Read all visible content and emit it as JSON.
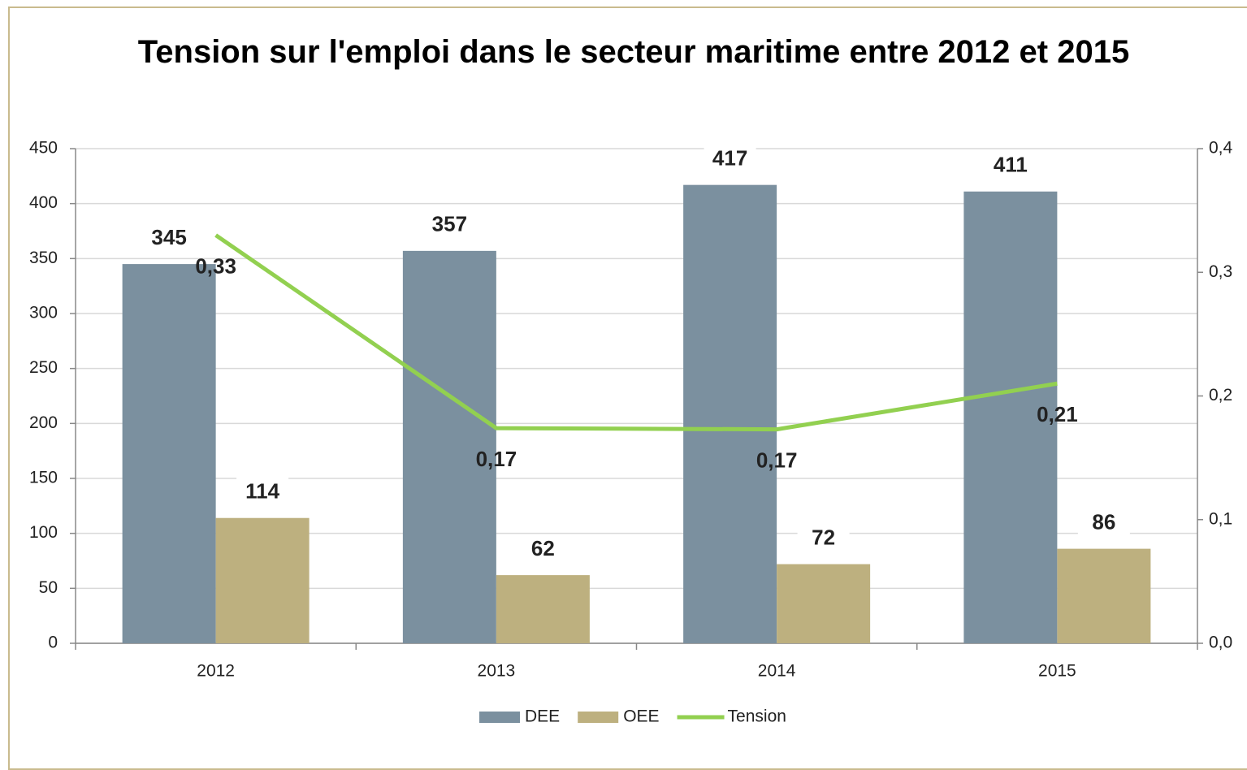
{
  "chart_data": {
    "type": "bar-line",
    "title": "Tension sur l'emploi dans le secteur maritime entre 2012 et 2015",
    "categories": [
      "2012",
      "2013",
      "2014",
      "2015"
    ],
    "series": [
      {
        "name": "DEE",
        "type": "bar",
        "color": "#7b909f",
        "values": [
          345,
          357,
          417,
          411
        ]
      },
      {
        "name": "OEE",
        "type": "bar",
        "color": "#bdb07f",
        "values": [
          114,
          62,
          72,
          86
        ]
      },
      {
        "name": "Tension",
        "type": "line",
        "axis": "y2",
        "color": "#92d050",
        "values": [
          0.33,
          0.174,
          0.173,
          0.21
        ],
        "value_labels": [
          "0,33",
          "0,17",
          "0,17",
          "0,21"
        ]
      }
    ],
    "ylim": [
      0,
      450
    ],
    "yticks": [
      0,
      50,
      100,
      150,
      200,
      250,
      300,
      350,
      400,
      450
    ],
    "y2lim": [
      0,
      0.4
    ],
    "y2ticks": [
      {
        "value": 0,
        "label": "0,0"
      },
      {
        "value": 0.1,
        "label": "0,1"
      },
      {
        "value": 0.2,
        "label": "0,2"
      },
      {
        "value": 0.3,
        "label": "0,3"
      },
      {
        "value": 0.4,
        "label": "0,4"
      }
    ],
    "grid": true,
    "legend": "bottom"
  }
}
